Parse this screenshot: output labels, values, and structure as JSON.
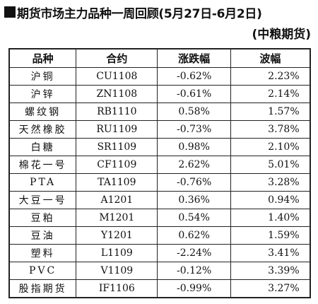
{
  "title": "期货市场主力品种一周回顾(5月27日-6月2日)",
  "source": "(中粮期货)",
  "table": {
    "headers": [
      "品种",
      "合约",
      "涨跌幅",
      "波幅"
    ],
    "rows": [
      {
        "name": "沪铜",
        "contract": "CU1108",
        "change": "-0.62%",
        "range": "2.23%"
      },
      {
        "name": "沪锌",
        "contract": "ZN1108",
        "change": "-0.61%",
        "range": "2.14%"
      },
      {
        "name": "螺纹钢",
        "contract": "RB1110",
        "change": "0.58%",
        "range": "1.57%"
      },
      {
        "name": "天然橡胶",
        "contract": "RU1109",
        "change": "-0.73%",
        "range": "3.78%"
      },
      {
        "name": "白糖",
        "contract": "SR1109",
        "change": "0.98%",
        "range": "2.10%"
      },
      {
        "name": "棉花一号",
        "contract": "CF1109",
        "change": "2.62%",
        "range": "5.01%"
      },
      {
        "name": "PTA",
        "contract": "TA1109",
        "change": "-0.76%",
        "range": "3.28%"
      },
      {
        "name": "大豆一号",
        "contract": "A1201",
        "change": "0.36%",
        "range": "0.94%"
      },
      {
        "name": "豆粕",
        "contract": "M1201",
        "change": "0.54%",
        "range": "1.40%"
      },
      {
        "name": "豆油",
        "contract": "Y1201",
        "change": "0.62%",
        "range": "1.59%"
      },
      {
        "name": "塑料",
        "contract": "L1109",
        "change": "-2.24%",
        "range": "3.41%"
      },
      {
        "name": "PVC",
        "contract": "V1109",
        "change": "-0.12%",
        "range": "3.39%"
      },
      {
        "name": "股指期货",
        "contract": "IF1106",
        "change": "-0.99%",
        "range": "3.27%"
      }
    ]
  }
}
